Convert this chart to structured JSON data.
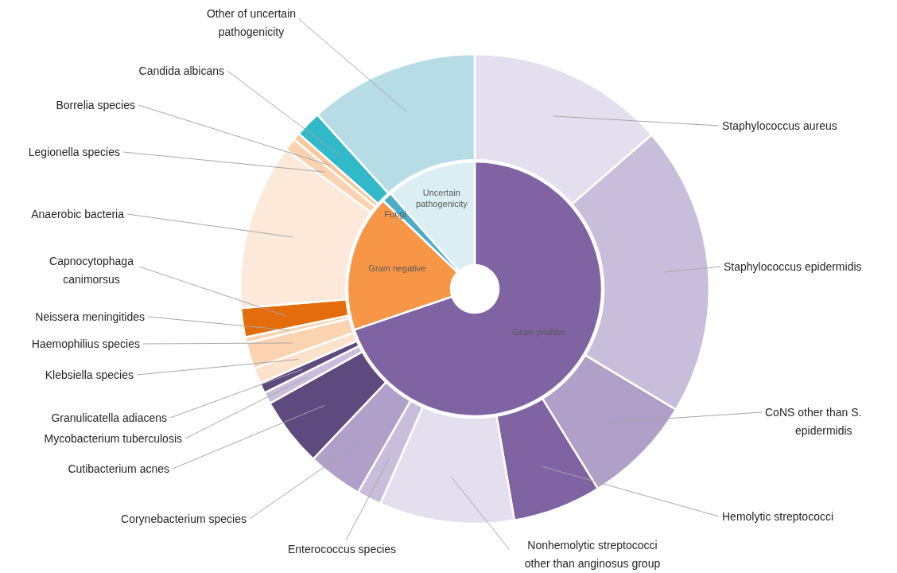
{
  "chart_data": [
    {
      "type": "donut",
      "categories": [
        "Gram positive",
        "Gram negative",
        "Fungi",
        "Uncertain pathogenicity"
      ],
      "values": [
        69.8,
        17.4,
        1.3,
        11.5
      ],
      "colors": [
        "#7f63a2",
        "#f79646",
        "#4bacc6",
        "#dbeef4"
      ]
    },
    {
      "type": "donut",
      "categories": [
        "Staphylococcus aureus",
        "Staphylococcus epidermidis",
        "CoNS other than S. epidermidis",
        "Hemolytic streptococci",
        "Nonhemolytic streptococci other than anginosus group",
        "Enterococcus species",
        "Corynebacterium species",
        "Cutibacterium acnes",
        "Mycobacterium tuberculosis",
        "Granulicatella adiacens",
        "Klebsiella species",
        "Haemophilius species",
        "Neissera meningitides",
        "Capnocytophaga canimorsus",
        "Anaerobic bacteria",
        "Legionella species",
        "Borrelia species",
        "Candida albicans",
        "Other of uncertain pathogenicity"
      ],
      "values": [
        13.6,
        20,
        7.6,
        6.1,
        9.3,
        1.7,
        3.8,
        4.8,
        0.8,
        0.7,
        1.1,
        1.8,
        0.4,
        2,
        11.4,
        0.9,
        0.5,
        1.8,
        11.7
      ],
      "colors": [
        "#e4dfee",
        "#c8bedb",
        "#b09fc8",
        "#7f63a2",
        "#e4dfee",
        "#c8bedb",
        "#b09fc8",
        "#5e4a7e",
        "#c8bedb",
        "#5e4a7e",
        "#fde3cc",
        "#fbd3b0",
        "#fbd3b0",
        "#e46c0a",
        "#fde9da",
        "#fbd3b0",
        "#f9c898",
        "#31b9c9",
        "#b6dce6"
      ]
    }
  ]
}
